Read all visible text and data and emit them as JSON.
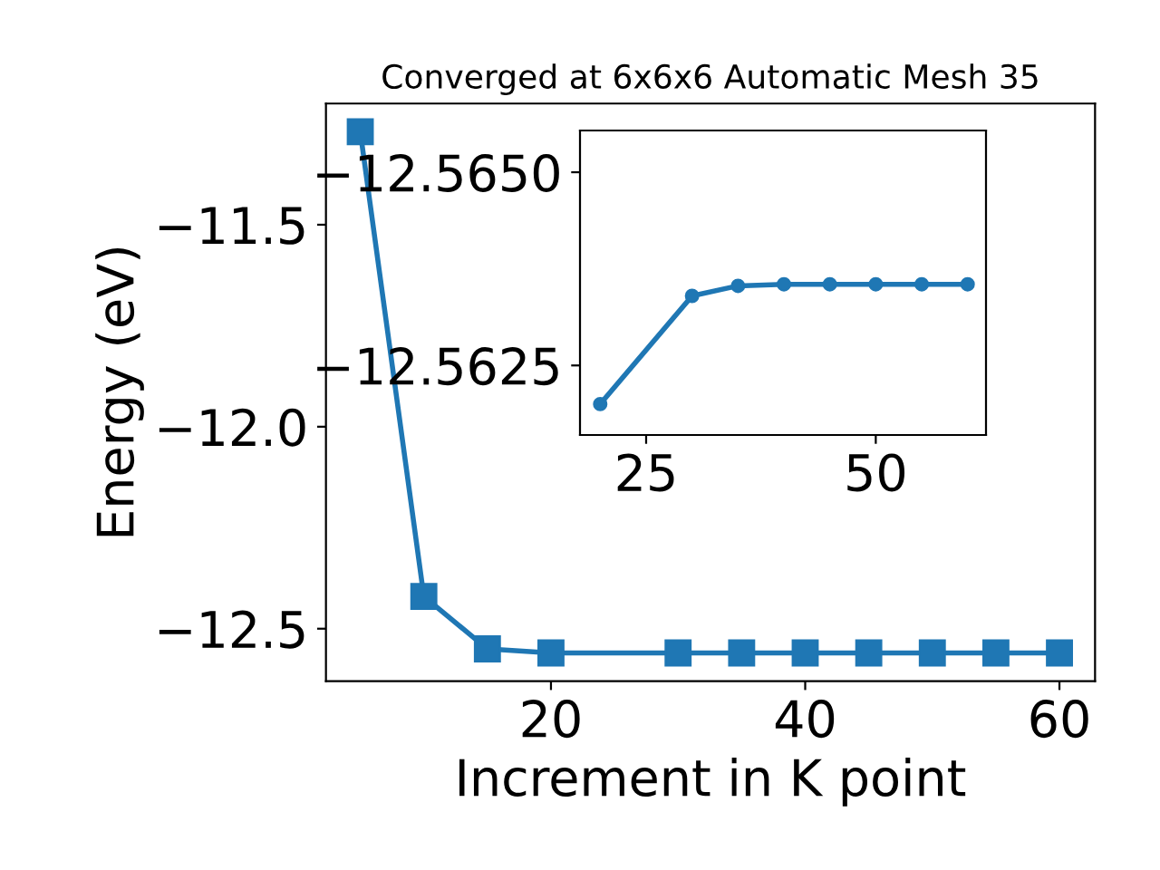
{
  "chart_data": [
    {
      "type": "line",
      "title": "Converged at 6x6x6 Automatic Mesh 35",
      "xlabel": "Increment in K point",
      "ylabel": "Energy (eV)",
      "marker": "square",
      "x": [
        5,
        10,
        15,
        20,
        30,
        35,
        40,
        45,
        50,
        55,
        60
      ],
      "series": [
        {
          "color": "#1f77b4",
          "values": [
            -11.27,
            -12.42,
            -12.55,
            -12.56,
            -12.56,
            -12.56,
            -12.56,
            -12.56,
            -12.56,
            -12.56,
            -12.56
          ]
        }
      ],
      "xlim": [
        2.3,
        62.8
      ],
      "ylim": [
        -12.63,
        -11.2
      ],
      "xticks": [
        20,
        40,
        60
      ],
      "yticks": [
        {
          "value": -12.5,
          "label": "−12.5"
        },
        {
          "value": -12.0,
          "label": "−12.0"
        },
        {
          "value": -11.5,
          "label": "−11.5"
        }
      ]
    },
    {
      "type": "line",
      "marker": "circle",
      "x": [
        20,
        30,
        35,
        40,
        45,
        50,
        55,
        60
      ],
      "series": [
        {
          "color": "#1f77b4",
          "values": [
            -12.562,
            -12.5634,
            -12.56353,
            -12.56355,
            -12.56355,
            -12.56355,
            -12.56355,
            -12.56355
          ]
        }
      ],
      "xlim": [
        17.8,
        62.0
      ],
      "ylim": [
        -12.5616,
        -12.56554
      ],
      "xticks": [
        25,
        50
      ],
      "yticks": [
        {
          "value": -12.565,
          "label": "−12.5650"
        },
        {
          "value": -12.5625,
          "label": "−12.5625"
        }
      ]
    }
  ]
}
